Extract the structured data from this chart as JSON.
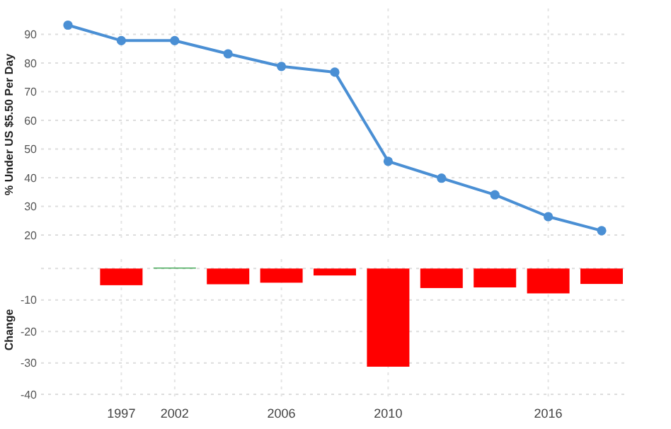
{
  "chart_data": [
    {
      "type": "line",
      "ylabel": "% Under US $5.50 Per Day",
      "categories": [
        null,
        "1997",
        "2002",
        null,
        "2006",
        null,
        "2010",
        null,
        null,
        "2016",
        null
      ],
      "series": [
        {
          "color": "#4a8fd4",
          "values": [
            93.2,
            87.8,
            87.8,
            83.2,
            78.8,
            76.8,
            45.7,
            39.8,
            34,
            26.4,
            21.5
          ]
        }
      ],
      "ylim": [
        18,
        99
      ],
      "yticks": [
        20,
        30,
        40,
        50,
        60,
        70,
        80,
        90
      ],
      "grid": true,
      "marker": "circle",
      "tick_labels": "y"
    },
    {
      "type": "bar",
      "ylabel": "Change",
      "categories": [
        null,
        "1997",
        "2002",
        null,
        "2006",
        null,
        "2010",
        null,
        null,
        "2016",
        null
      ],
      "values": [
        null,
        -5.3,
        0.3,
        -5,
        -4.5,
        -2.2,
        -31.2,
        -6.2,
        -6,
        -7.9,
        -4.9
      ],
      "colors": [
        null,
        "#ff0000",
        "#2e9e44",
        "#ff0000",
        "#ff0000",
        "#ff0000",
        "#ff0000",
        "#ff0000",
        "#ff0000",
        "#ff0000",
        "#ff0000"
      ],
      "ylim": [
        -42,
        3
      ],
      "yticks": [
        {
          "value": 0,
          "label": null
        },
        -10,
        -20,
        -30,
        -40
      ],
      "grid": true
    }
  ]
}
